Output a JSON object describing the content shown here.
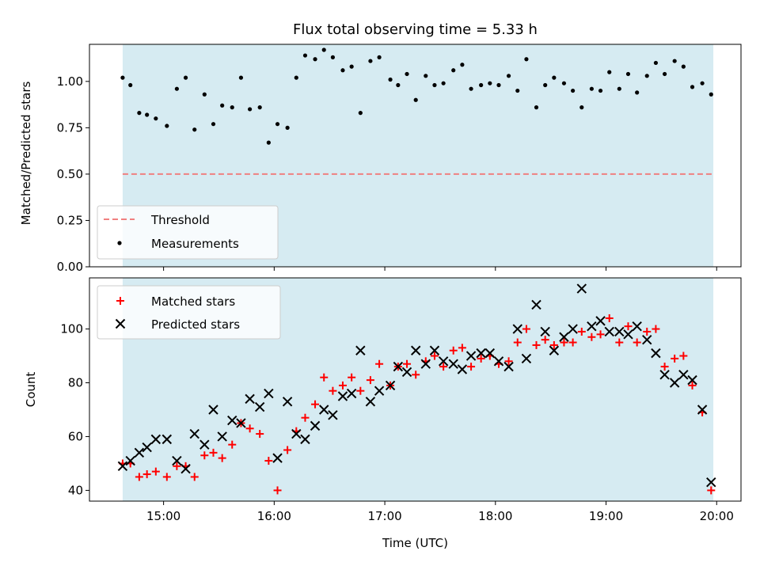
{
  "chart_data": [
    {
      "type": "scatter",
      "title": "Flux total observing time = 5.33 h",
      "xlabel": "",
      "ylabel": "Matched/Predicted stars",
      "xlim": [
        14.33,
        20.22
      ],
      "ylim": [
        0.0,
        1.2
      ],
      "yticks": [
        "0.00",
        "0.25",
        "0.50",
        "0.75",
        "1.00"
      ],
      "shaded_interval": [
        14.63,
        19.97
      ],
      "shade_color": "#add8e6",
      "threshold": {
        "name": "Threshold",
        "value": 0.5,
        "color": "#f08080"
      },
      "legend_position": "lower-left",
      "series": [
        {
          "name": "Measurements",
          "color": "#000000",
          "x": [
            14.63,
            14.7,
            14.78,
            14.85,
            14.93,
            15.03,
            15.12,
            15.2,
            15.28,
            15.37,
            15.45,
            15.53,
            15.62,
            15.7,
            15.78,
            15.87,
            15.95,
            16.03,
            16.12,
            16.2,
            16.28,
            16.37,
            16.45,
            16.53,
            16.62,
            16.7,
            16.78,
            16.87,
            16.95,
            17.05,
            17.12,
            17.2,
            17.28,
            17.37,
            17.45,
            17.53,
            17.62,
            17.7,
            17.78,
            17.87,
            17.95,
            18.03,
            18.12,
            18.2,
            18.28,
            18.37,
            18.45,
            18.53,
            18.62,
            18.7,
            18.78,
            18.87,
            18.95,
            19.03,
            19.12,
            19.2,
            19.28,
            19.37,
            19.45,
            19.53,
            19.62,
            19.7,
            19.78,
            19.87,
            19.95
          ],
          "y": [
            1.02,
            0.98,
            0.83,
            0.82,
            0.8,
            0.76,
            0.96,
            1.02,
            0.74,
            0.93,
            0.77,
            0.87,
            0.86,
            1.02,
            0.85,
            0.86,
            0.67,
            0.77,
            0.75,
            1.02,
            1.14,
            1.12,
            1.17,
            1.13,
            1.06,
            1.08,
            0.83,
            1.11,
            1.13,
            1.01,
            0.98,
            1.04,
            0.9,
            1.03,
            0.98,
            0.99,
            1.06,
            1.09,
            0.96,
            0.98,
            0.99,
            0.98,
            1.03,
            0.95,
            1.12,
            0.86,
            0.98,
            1.02,
            0.99,
            0.95,
            0.86,
            0.96,
            0.95,
            1.05,
            0.96,
            1.04,
            0.94,
            1.03,
            1.1,
            1.04,
            1.11,
            1.08,
            0.97,
            0.99,
            0.93
          ]
        }
      ]
    },
    {
      "type": "scatter",
      "title": "",
      "xlabel": "Time (UTC)",
      "ylabel": "Count",
      "xlim": [
        14.33,
        20.22
      ],
      "ylim": [
        36,
        119
      ],
      "yticks": [
        "40",
        "60",
        "80",
        "100"
      ],
      "xticks": [
        "15:00",
        "16:00",
        "17:00",
        "18:00",
        "19:00",
        "20:00"
      ],
      "shaded_interval": [
        14.63,
        19.97
      ],
      "shade_color": "#add8e6",
      "legend_position": "upper-left",
      "series": [
        {
          "name": "Matched stars",
          "color": "#ff0000",
          "marker": "plus",
          "x": [
            14.63,
            14.7,
            14.78,
            14.85,
            14.93,
            15.03,
            15.12,
            15.2,
            15.28,
            15.37,
            15.45,
            15.53,
            15.62,
            15.7,
            15.78,
            15.87,
            15.95,
            16.03,
            16.12,
            16.2,
            16.28,
            16.37,
            16.45,
            16.53,
            16.62,
            16.7,
            16.78,
            16.87,
            16.95,
            17.05,
            17.12,
            17.2,
            17.28,
            17.37,
            17.45,
            17.53,
            17.62,
            17.7,
            17.78,
            17.87,
            17.95,
            18.03,
            18.12,
            18.2,
            18.28,
            18.37,
            18.45,
            18.53,
            18.62,
            18.7,
            18.78,
            18.87,
            18.95,
            19.03,
            19.12,
            19.2,
            19.28,
            19.37,
            19.45,
            19.53,
            19.62,
            19.7,
            19.78,
            19.87,
            19.95
          ],
          "y": [
            50,
            50,
            45,
            46,
            47,
            45,
            49,
            49,
            45,
            53,
            54,
            52,
            57,
            65,
            63,
            61,
            51,
            40,
            55,
            62,
            67,
            72,
            82,
            77,
            79,
            82,
            77,
            81,
            87,
            79,
            86,
            87,
            83,
            88,
            90,
            86,
            92,
            93,
            86,
            89,
            90,
            87,
            88,
            95,
            100,
            94,
            96,
            94,
            95,
            95,
            99,
            97,
            98,
            104,
            95,
            101,
            95,
            99,
            100,
            86,
            89,
            90,
            79,
            69,
            40
          ]
        },
        {
          "name": "Predicted stars",
          "color": "#000000",
          "marker": "x",
          "x": [
            14.63,
            14.7,
            14.78,
            14.85,
            14.93,
            15.03,
            15.12,
            15.2,
            15.28,
            15.37,
            15.45,
            15.53,
            15.62,
            15.7,
            15.78,
            15.87,
            15.95,
            16.03,
            16.12,
            16.2,
            16.28,
            16.37,
            16.45,
            16.53,
            16.62,
            16.7,
            16.78,
            16.87,
            16.95,
            17.05,
            17.12,
            17.2,
            17.28,
            17.37,
            17.45,
            17.53,
            17.62,
            17.7,
            17.78,
            17.87,
            17.95,
            18.03,
            18.12,
            18.2,
            18.28,
            18.37,
            18.45,
            18.53,
            18.62,
            18.7,
            18.78,
            18.87,
            18.95,
            19.03,
            19.12,
            19.2,
            19.28,
            19.37,
            19.45,
            19.53,
            19.62,
            19.7,
            19.78,
            19.87,
            19.95
          ],
          "y": [
            49,
            51,
            54,
            56,
            59,
            59,
            51,
            48,
            61,
            57,
            70,
            60,
            66,
            65,
            74,
            71,
            76,
            52,
            73,
            61,
            59,
            64,
            70,
            68,
            75,
            76,
            92,
            73,
            77,
            79,
            86,
            84,
            92,
            87,
            92,
            88,
            87,
            85,
            90,
            91,
            91,
            88,
            86,
            100,
            89,
            109,
            99,
            92,
            97,
            100,
            115,
            101,
            103,
            99,
            99,
            98,
            101,
            96,
            91,
            83,
            80,
            83,
            81,
            70,
            43
          ]
        }
      ]
    }
  ]
}
